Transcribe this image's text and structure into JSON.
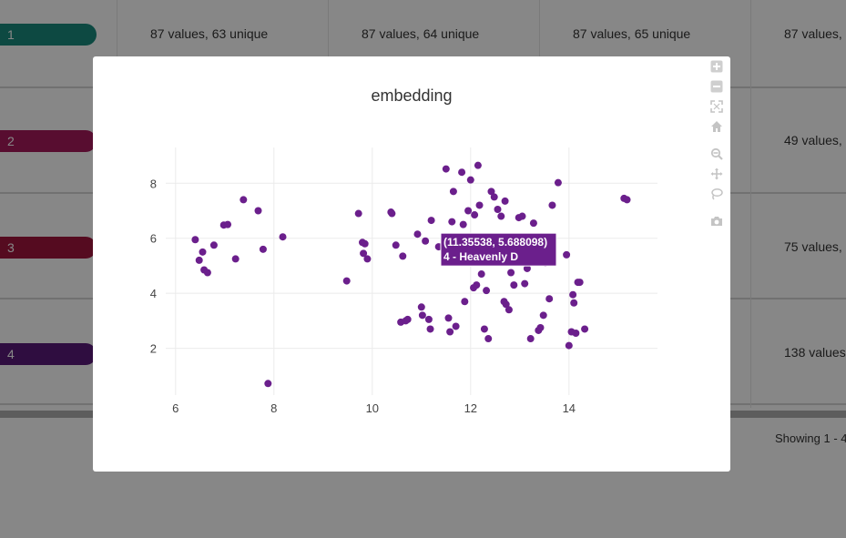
{
  "background_table": {
    "rows": [
      {
        "label": "1",
        "color": "#1a8a7e",
        "stats": [
          "87 values, 63 unique",
          "87 values, 64 unique",
          "87 values, 65 unique",
          "87 values,"
        ]
      },
      {
        "label": "2",
        "color": "#a61a5c",
        "stats": [
          "49 values,"
        ]
      },
      {
        "label": "3",
        "color": "#a0153e",
        "stats": [
          "75 values,"
        ]
      },
      {
        "label": "4",
        "color": "#5a1a7a",
        "stats": [
          "138 values"
        ]
      }
    ],
    "footer_text": "Showing 1 - 4"
  },
  "modebar": {
    "icons": [
      "zoom-in-icon",
      "zoom-out-icon",
      "autoscale-icon",
      "reset-axes-icon",
      "zoom-icon",
      "pan-icon",
      "lasso-select-icon",
      "camera-icon"
    ]
  },
  "chart_data": {
    "type": "scatter",
    "title": "embedding",
    "xlabel": "",
    "ylabel": "",
    "xlim": [
      5.8,
      15.8
    ],
    "ylim": [
      0.3,
      9.3
    ],
    "xticks": [
      "6",
      "8",
      "10",
      "12",
      "14"
    ],
    "yticks": [
      "2",
      "4",
      "6",
      "8"
    ],
    "grid": true,
    "marker_color": "#6b1f8c",
    "tooltip": {
      "coords": "(11.35538, 5.688098)",
      "label": "4 - Heavenly D",
      "x": 11.35538,
      "y": 5.688098
    },
    "x": [
      6.4,
      6.48,
      6.55,
      6.58,
      6.65,
      6.78,
      6.98,
      7.06,
      7.22,
      7.38,
      7.68,
      7.78,
      7.88,
      8.18,
      9.48,
      9.72,
      9.8,
      9.82,
      9.85,
      9.9,
      10.38,
      10.4,
      10.48,
      10.58,
      10.62,
      10.68,
      10.72,
      10.92,
      11.0,
      11.02,
      11.08,
      11.15,
      11.18,
      11.2,
      11.35,
      11.5,
      11.55,
      11.58,
      11.62,
      11.65,
      11.7,
      11.82,
      11.85,
      11.88,
      11.95,
      12.0,
      12.04,
      12.06,
      12.08,
      12.12,
      12.15,
      12.18,
      12.22,
      12.28,
      12.32,
      12.36,
      12.42,
      12.48,
      12.55,
      12.62,
      12.68,
      12.7,
      12.72,
      12.78,
      12.82,
      12.88,
      12.98,
      13.05,
      13.1,
      13.15,
      13.22,
      13.28,
      13.32,
      13.38,
      13.42,
      13.48,
      13.52,
      13.6,
      13.66,
      13.78,
      13.95,
      14.0,
      14.05,
      14.08,
      14.1,
      14.14,
      14.18,
      14.22,
      14.32,
      15.12,
      15.18
    ],
    "y": [
      5.95,
      5.2,
      5.5,
      4.85,
      4.75,
      5.75,
      6.48,
      6.5,
      5.25,
      7.4,
      7.0,
      5.6,
      0.72,
      6.05,
      4.45,
      6.9,
      5.85,
      5.45,
      5.8,
      5.25,
      6.95,
      6.9,
      5.75,
      2.95,
      5.35,
      3.0,
      3.05,
      6.15,
      3.5,
      3.2,
      5.9,
      3.05,
      2.7,
      6.65,
      5.69,
      8.52,
      3.1,
      2.6,
      6.6,
      7.7,
      2.8,
      8.4,
      6.5,
      3.7,
      7.0,
      8.12,
      5.5,
      4.2,
      6.85,
      4.3,
      8.65,
      7.2,
      4.7,
      2.7,
      4.1,
      2.35,
      7.7,
      7.5,
      7.05,
      6.8,
      3.7,
      7.35,
      3.6,
      3.4,
      4.75,
      4.3,
      6.75,
      6.8,
      4.35,
      4.9,
      2.35,
      6.55,
      5.2,
      2.65,
      2.75,
      3.2,
      5.1,
      3.8,
      7.2,
      8.02,
      5.4,
      2.1,
      2.6,
      3.95,
      3.65,
      2.55,
      4.4,
      4.4,
      2.7,
      7.45,
      7.4
    ]
  }
}
